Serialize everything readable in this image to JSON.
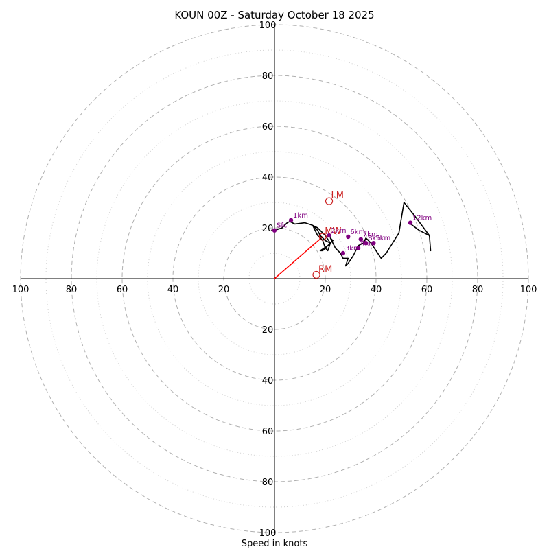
{
  "chart_data": {
    "type": "hodograph",
    "title": "KOUN 00Z - Saturday October 18 2025",
    "xlabel": "Speed in knots",
    "max_speed": 100,
    "major_rings": [
      20,
      40,
      60,
      80,
      100
    ],
    "minor_rings": [
      10,
      30,
      50,
      70,
      90
    ],
    "grid": true,
    "x_tick_labels": [
      "100",
      "80",
      "60",
      "40",
      "20",
      "20",
      "40",
      "60",
      "80",
      "100"
    ],
    "y_tick_labels": [
      "100",
      "80",
      "60",
      "40",
      "20",
      "20",
      "40",
      "60",
      "80",
      "100"
    ],
    "x_tick_values": [
      -100,
      -80,
      -60,
      -40,
      -20,
      20,
      40,
      60,
      80,
      100
    ],
    "y_tick_values": [
      100,
      80,
      60,
      40,
      20,
      -20,
      -40,
      -60,
      -80,
      -100
    ],
    "profile": {
      "color": "#000000",
      "points": [
        [
          0,
          19
        ],
        [
          3,
          20
        ],
        [
          5,
          22
        ],
        [
          6,
          22.5
        ],
        [
          8,
          21.5
        ],
        [
          12,
          22
        ],
        [
          15,
          21
        ],
        [
          17,
          17
        ],
        [
          19,
          15
        ],
        [
          20,
          12
        ],
        [
          21,
          11
        ],
        [
          22,
          14
        ],
        [
          20,
          17
        ],
        [
          17,
          20
        ],
        [
          15,
          21
        ],
        [
          17,
          19
        ],
        [
          18,
          17
        ],
        [
          20,
          15
        ],
        [
          22,
          14
        ],
        [
          19,
          11
        ],
        [
          18,
          11
        ],
        [
          21,
          13
        ],
        [
          23,
          15
        ],
        [
          22,
          16
        ],
        [
          24,
          12
        ],
        [
          26,
          10
        ],
        [
          27,
          8
        ],
        [
          29,
          8
        ],
        [
          28,
          5
        ],
        [
          29,
          6
        ],
        [
          31,
          9
        ],
        [
          33,
          13
        ],
        [
          35,
          14
        ],
        [
          36,
          16
        ],
        [
          38,
          14
        ],
        [
          40,
          11
        ],
        [
          42,
          8
        ],
        [
          44,
          10
        ],
        [
          49,
          18
        ],
        [
          51,
          30
        ],
        [
          55,
          25
        ],
        [
          61,
          17
        ],
        [
          61.5,
          11
        ],
        [
          61,
          17
        ],
        [
          57,
          19
        ],
        [
          53,
          22
        ]
      ]
    },
    "height_markers": {
      "color": "#800080",
      "points": [
        {
          "label": "Sfc",
          "u": 0,
          "v": 19
        },
        {
          "label": "1km",
          "u": 6.5,
          "v": 23
        },
        {
          "label": "2km",
          "u": 21.5,
          "v": 17
        },
        {
          "label": "3km",
          "u": 27,
          "v": 10
        },
        {
          "label": "4km",
          "u": 33,
          "v": 12
        },
        {
          "label": "5km",
          "u": 39,
          "v": 14
        },
        {
          "label": "6km",
          "u": 29,
          "v": 16.5
        },
        {
          "label": "7km",
          "u": 34,
          "v": 15.5
        },
        {
          "label": "8km",
          "u": 36,
          "v": 14
        },
        {
          "label": "12km",
          "u": 53.5,
          "v": 22
        }
      ]
    },
    "storm_motions": {
      "color": "#cc2222",
      "points": [
        {
          "label": "LM",
          "u": 21.5,
          "v": 30.5
        },
        {
          "label": "RM",
          "u": 16.5,
          "v": 1.5
        },
        {
          "label": "MW",
          "u": 19,
          "v": 16.5
        }
      ]
    },
    "shear_vector": {
      "color": "#ff0000",
      "from": [
        0,
        0
      ],
      "to": [
        19,
        16.5
      ]
    }
  }
}
